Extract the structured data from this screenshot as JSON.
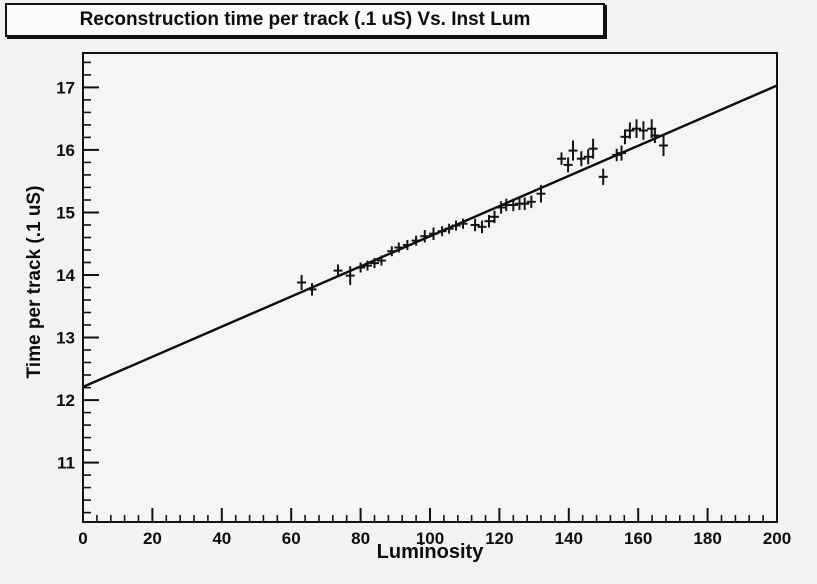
{
  "page": {
    "background": "#f3f3f1",
    "kind": "root-style-physics-plot"
  },
  "title_box": {
    "text": "Reconstruction time per track (.1 uS) Vs. Inst Lum"
  },
  "chart_data": {
    "type": "scatter",
    "title": "Reconstruction time per track (.1 uS) Vs. Inst Lum",
    "xlabel": "Luminosity",
    "ylabel": "Time per track (.1 uS)",
    "xlim": [
      0,
      200
    ],
    "ylim": [
      10.05,
      17.55
    ],
    "grid": false,
    "legend": "none",
    "x_major_ticks": [
      0,
      20,
      40,
      60,
      80,
      100,
      120,
      140,
      160,
      180,
      200
    ],
    "x_minor_step": 4,
    "y_major_ticks": [
      11,
      12,
      13,
      14,
      15,
      16,
      17
    ],
    "y_minor_step": 0.2,
    "fit_line": {
      "x": [
        0,
        200
      ],
      "y": [
        12.21,
        17.03
      ]
    },
    "series": [
      {
        "name": "reco-time-vs-lum",
        "marker": "plus-with-vertical-error-bar",
        "points": [
          {
            "x": 63.0,
            "y": 13.88,
            "ey": 0.12
          },
          {
            "x": 66.0,
            "y": 13.77,
            "ey": 0.1
          },
          {
            "x": 73.5,
            "y": 14.07,
            "ey": 0.1
          },
          {
            "x": 77.0,
            "y": 13.99,
            "ey": 0.15
          },
          {
            "x": 80.0,
            "y": 14.12,
            "ey": 0.08
          },
          {
            "x": 82.0,
            "y": 14.15,
            "ey": 0.08
          },
          {
            "x": 84.0,
            "y": 14.19,
            "ey": 0.08
          },
          {
            "x": 86.0,
            "y": 14.23,
            "ey": 0.08
          },
          {
            "x": 89.0,
            "y": 14.38,
            "ey": 0.08
          },
          {
            "x": 91.0,
            "y": 14.44,
            "ey": 0.08
          },
          {
            "x": 93.5,
            "y": 14.48,
            "ey": 0.08
          },
          {
            "x": 96.0,
            "y": 14.55,
            "ey": 0.08
          },
          {
            "x": 98.5,
            "y": 14.62,
            "ey": 0.1
          },
          {
            "x": 101.0,
            "y": 14.66,
            "ey": 0.1
          },
          {
            "x": 103.5,
            "y": 14.7,
            "ey": 0.08
          },
          {
            "x": 105.5,
            "y": 14.74,
            "ey": 0.08
          },
          {
            "x": 107.5,
            "y": 14.79,
            "ey": 0.08
          },
          {
            "x": 109.5,
            "y": 14.82,
            "ey": 0.08
          },
          {
            "x": 113.0,
            "y": 14.8,
            "ey": 0.1
          },
          {
            "x": 115.0,
            "y": 14.77,
            "ey": 0.1
          },
          {
            "x": 117.0,
            "y": 14.86,
            "ey": 0.1
          },
          {
            "x": 118.6,
            "y": 14.93,
            "ey": 0.1
          },
          {
            "x": 120.5,
            "y": 15.08,
            "ey": 0.1
          },
          {
            "x": 122.0,
            "y": 15.12,
            "ey": 0.1
          },
          {
            "x": 124.0,
            "y": 15.12,
            "ey": 0.1
          },
          {
            "x": 125.8,
            "y": 15.14,
            "ey": 0.1
          },
          {
            "x": 127.3,
            "y": 15.14,
            "ey": 0.1
          },
          {
            "x": 129.2,
            "y": 15.17,
            "ey": 0.1
          },
          {
            "x": 132.0,
            "y": 15.3,
            "ey": 0.14
          },
          {
            "x": 137.9,
            "y": 15.86,
            "ey": 0.1
          },
          {
            "x": 139.8,
            "y": 15.76,
            "ey": 0.12
          },
          {
            "x": 141.2,
            "y": 15.99,
            "ey": 0.16
          },
          {
            "x": 143.6,
            "y": 15.86,
            "ey": 0.12
          },
          {
            "x": 145.6,
            "y": 15.89,
            "ey": 0.12
          },
          {
            "x": 147.0,
            "y": 16.02,
            "ey": 0.16
          },
          {
            "x": 149.9,
            "y": 15.57,
            "ey": 0.13
          },
          {
            "x": 153.8,
            "y": 15.92,
            "ey": 0.1
          },
          {
            "x": 155.2,
            "y": 15.95,
            "ey": 0.12
          },
          {
            "x": 156.2,
            "y": 16.21,
            "ey": 0.12
          },
          {
            "x": 157.6,
            "y": 16.31,
            "ey": 0.13
          },
          {
            "x": 159.5,
            "y": 16.34,
            "ey": 0.15
          },
          {
            "x": 161.5,
            "y": 16.31,
            "ey": 0.15
          },
          {
            "x": 163.9,
            "y": 16.34,
            "ey": 0.15
          },
          {
            "x": 164.8,
            "y": 16.23,
            "ey": 0.12
          },
          {
            "x": 167.3,
            "y": 16.07,
            "ey": 0.17
          }
        ]
      }
    ],
    "colors": {
      "axis": "#121212",
      "marker": "#141414",
      "fit_line": "#0c0c0c",
      "frame_fill": "#f5f5f3"
    }
  }
}
